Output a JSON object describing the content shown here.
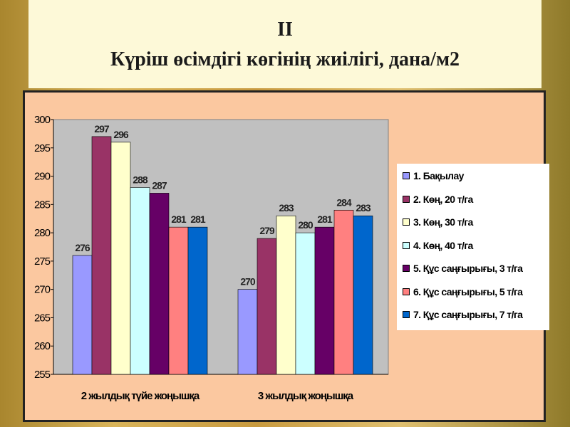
{
  "title": {
    "line1": "II",
    "line2": "Күріш өсімдігі көгінің жиілігі, дана/м2"
  },
  "chart_data": {
    "type": "bar",
    "title": "Күріш өсімдігі көгінің жиілігі, дана/м2",
    "categories": [
      "2 жылдық түйе жоңышқа",
      "3 жылдық жоңышқа"
    ],
    "series": [
      {
        "name": "1. Бақылау",
        "values": [
          276,
          270
        ],
        "color": "#9999ff"
      },
      {
        "name": "2. Көң, 20 т/га",
        "values": [
          297,
          279
        ],
        "color": "#993366"
      },
      {
        "name": "3. Көң, 30 т/га",
        "values": [
          296,
          283
        ],
        "color": "#ffffcc"
      },
      {
        "name": "4. Көң, 40 т/га",
        "values": [
          288,
          280
        ],
        "color": "#ccffff"
      },
      {
        "name": "5. Құс саңғырығы, 3 т/га",
        "values": [
          287,
          281
        ],
        "color": "#660066"
      },
      {
        "name": "6. Құс саңғырығы, 5 т/га",
        "values": [
          281,
          284
        ],
        "color": "#ff8080"
      },
      {
        "name": "7. Құс саңғырығы, 7 т/га",
        "values": [
          281,
          283
        ],
        "color": "#0066cc"
      }
    ],
    "ylim": [
      255,
      300
    ],
    "yticks": [
      255,
      260,
      265,
      270,
      275,
      280,
      285,
      290,
      295,
      300
    ],
    "ytick_labels": [
      "255",
      "260",
      "265",
      "270",
      "275",
      "280",
      "285",
      "290",
      "295",
      "300"
    ],
    "grid": false,
    "legend": "right",
    "plot_background": "#c0c0c0"
  }
}
